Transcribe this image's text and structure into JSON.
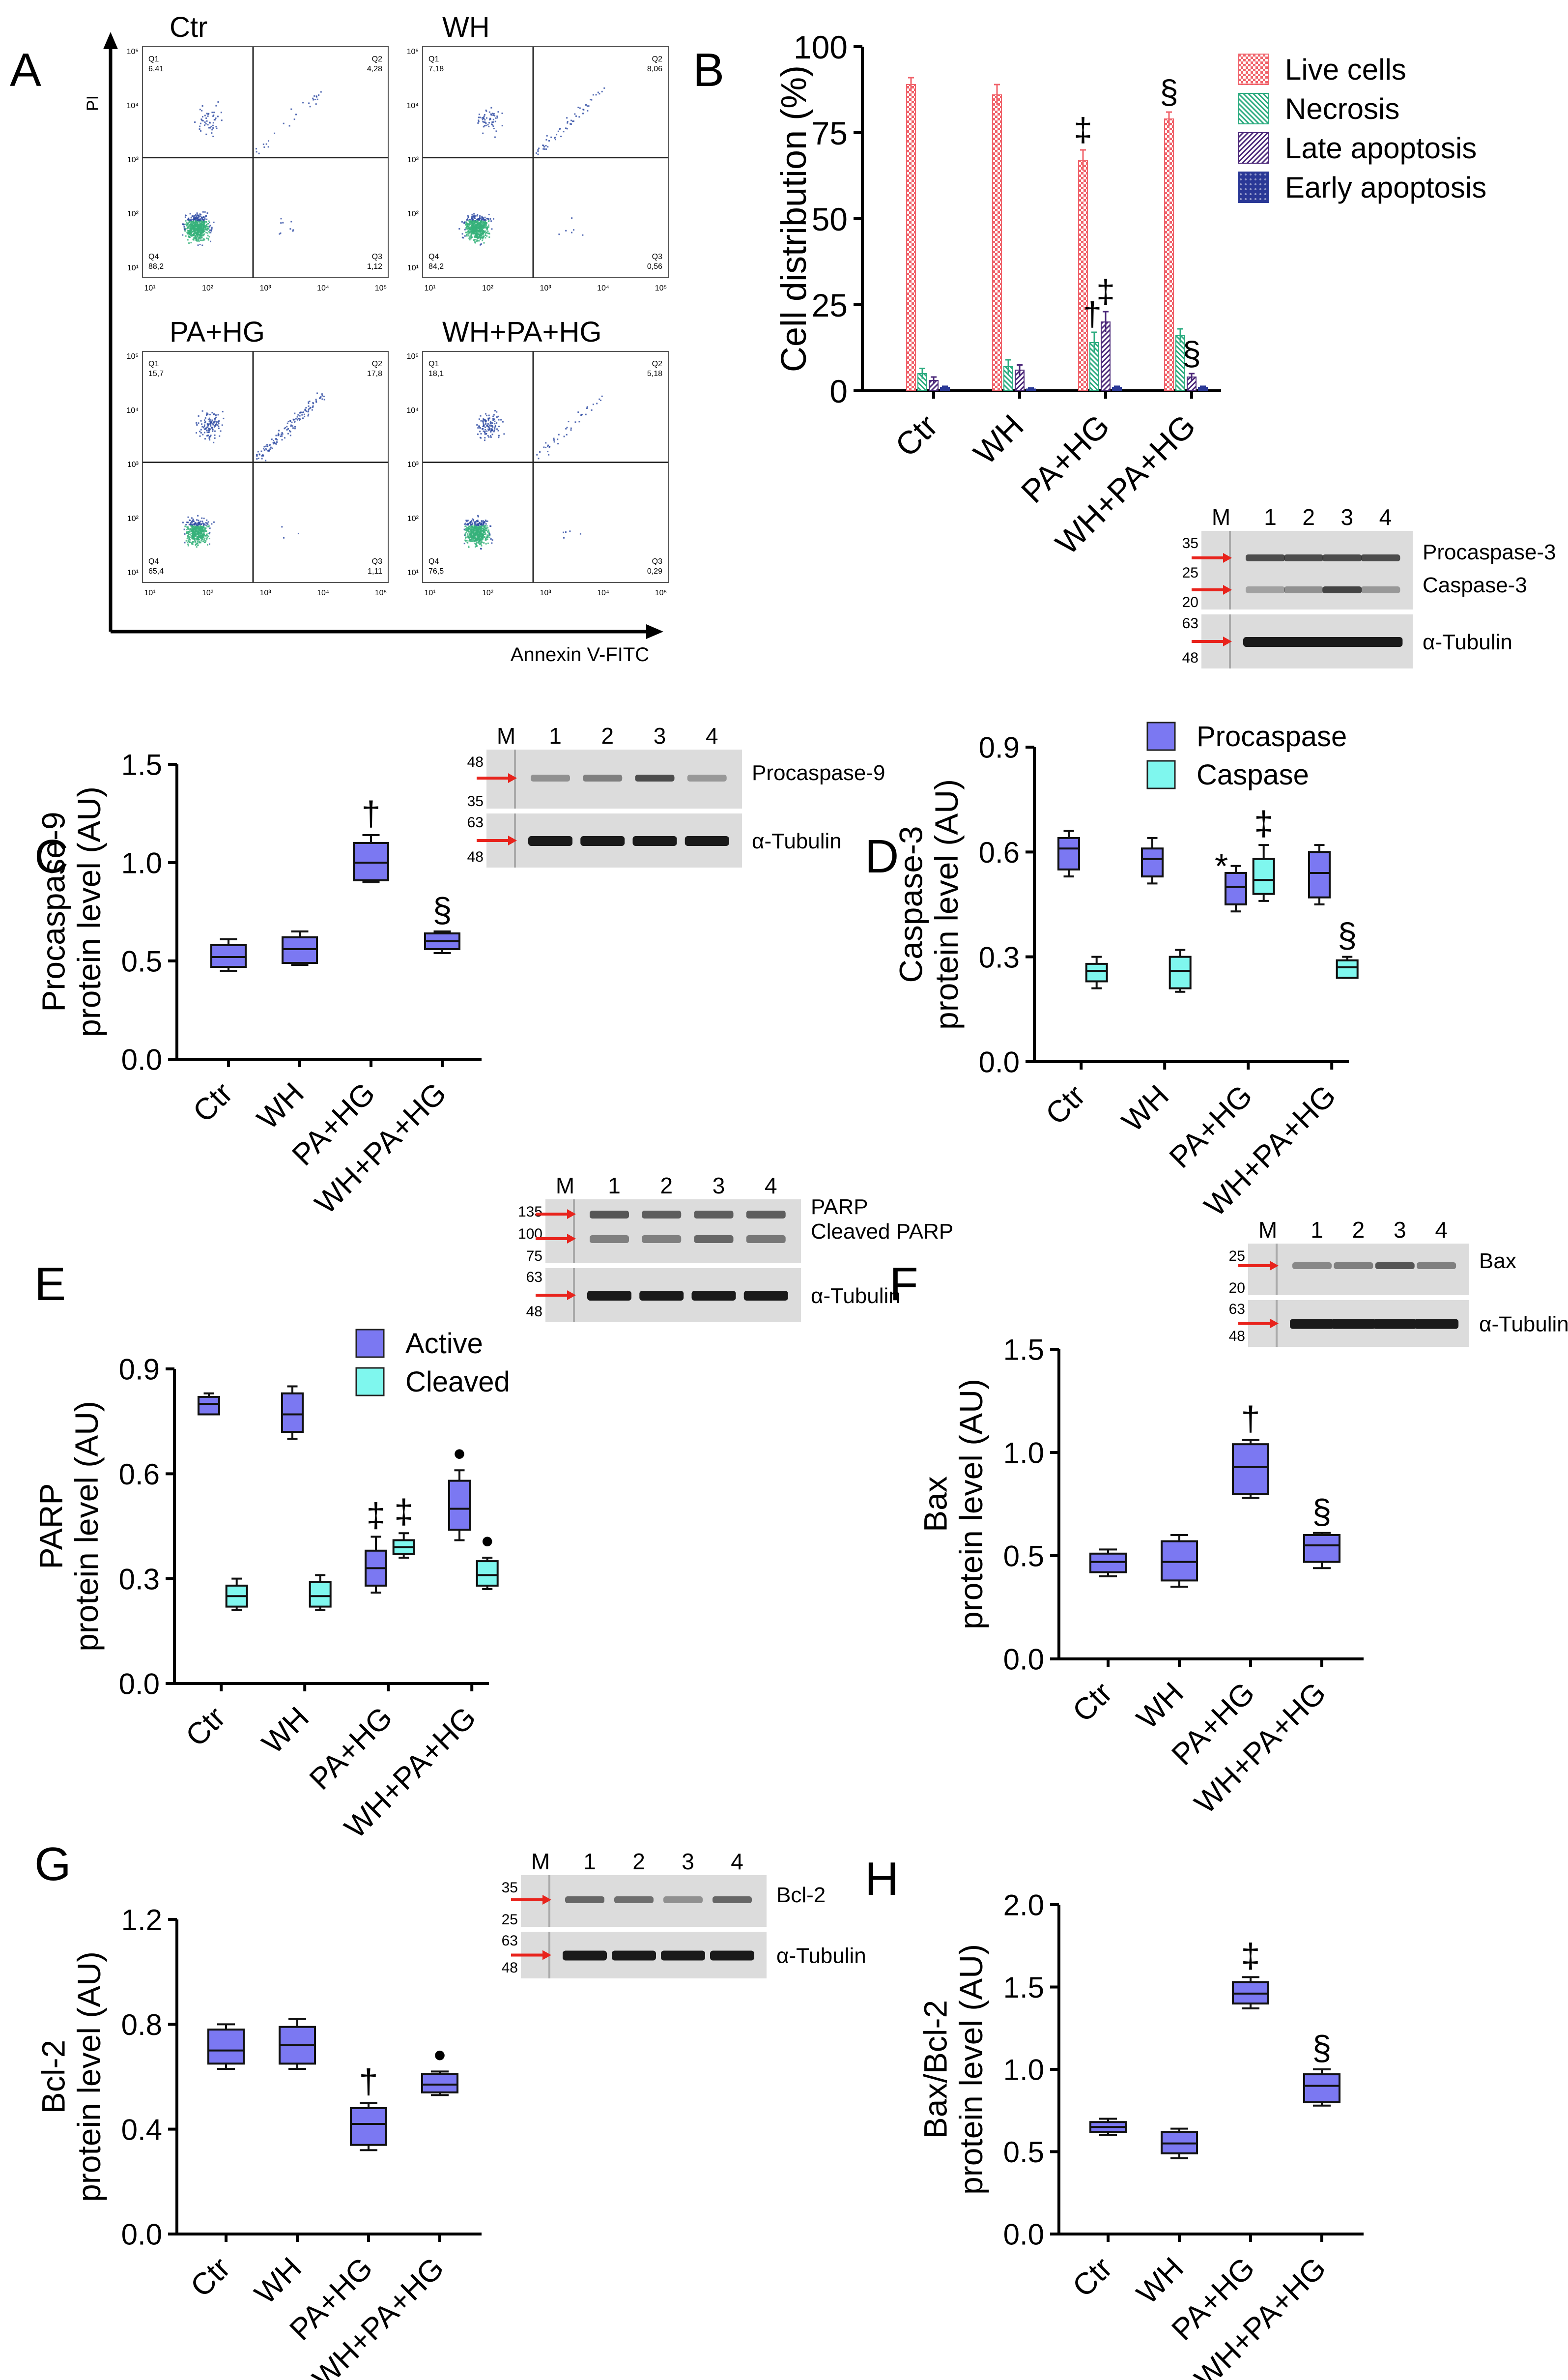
{
  "panel_labels": [
    "A",
    "B",
    "C",
    "D",
    "E",
    "F",
    "G",
    "H"
  ],
  "groups": [
    "Ctr",
    "WH",
    "PA+HG",
    "WH+PA+HG"
  ],
  "colors": {
    "live": "#f0636b",
    "necrosis": "#2bab7f",
    "late": "#4b2879",
    "early": "#2a3896",
    "box_primary": "#7b78f2",
    "box_secondary": "#7ff7ee",
    "arrow": "#e8231c",
    "scatter_main": "#2d4aa3",
    "scatter_dense": "#36b27a"
  },
  "flow": {
    "x_axis_label": "Annexin V-FITC",
    "y_axis_label": "PI",
    "x_ticks": [
      "10¹",
      "10²",
      "10³",
      "10⁴",
      "10⁵"
    ],
    "y_ticks": [
      "10¹",
      "10²",
      "10³",
      "10⁴",
      "10⁵"
    ],
    "plots": [
      {
        "title": "Ctr",
        "q1": "Q1",
        "q1v": "6,41",
        "q2": "Q2",
        "q2v": "4,28",
        "q3": "Q3",
        "q3v": "1,12",
        "q4": "Q4",
        "q4v": "88,2"
      },
      {
        "title": "WH",
        "q1": "Q1",
        "q1v": "7,18",
        "q2": "Q2",
        "q2v": "8,06",
        "q3": "Q3",
        "q3v": "0,56",
        "q4": "Q4",
        "q4v": "84,2"
      },
      {
        "title": "PA+HG",
        "q1": "Q1",
        "q1v": "15,7",
        "q2": "Q2",
        "q2v": "17,8",
        "q3": "Q3",
        "q3v": "1,11",
        "q4": "Q4",
        "q4v": "65,4"
      },
      {
        "title": "WH+PA+HG",
        "q1": "Q1",
        "q1v": "18,1",
        "q2": "Q2",
        "q2v": "5,18",
        "q3": "Q3",
        "q3v": "0,29",
        "q4": "Q4",
        "q4v": "76,5"
      }
    ]
  },
  "chart_data": [
    {
      "id": "B",
      "type": "bar",
      "title": "",
      "ylabel": "Cell distribution (%)",
      "xlabel": "",
      "ylim": [
        0,
        100
      ],
      "yticks": [
        "0",
        "25",
        "50",
        "75",
        "100"
      ],
      "categories": [
        "Ctr",
        "WH",
        "PA+HG",
        "WH+PA+HG"
      ],
      "series": [
        {
          "name": "Live cells",
          "values": [
            89,
            86,
            67,
            79
          ],
          "errors": [
            2,
            3,
            3,
            2
          ]
        },
        {
          "name": "Necrosis",
          "values": [
            5,
            7,
            14,
            16
          ],
          "errors": [
            1.5,
            2,
            3,
            2
          ]
        },
        {
          "name": "Late apoptosis",
          "values": [
            3,
            6,
            20,
            4
          ],
          "errors": [
            1,
            1.5,
            3,
            1
          ]
        },
        {
          "name": "Early apoptosis",
          "values": [
            1,
            0.5,
            1,
            1
          ],
          "errors": [
            0.3,
            0.3,
            0.3,
            0.3
          ]
        }
      ],
      "annotations": [
        {
          "text": "‡",
          "category": "PA+HG",
          "series": "Live cells"
        },
        {
          "text": "§",
          "category": "WH+PA+HG",
          "series": "Live cells"
        },
        {
          "text": "†",
          "category": "PA+HG",
          "series": "Necrosis"
        },
        {
          "text": "‡",
          "category": "PA+HG",
          "series": "Late apoptosis"
        },
        {
          "text": "§",
          "category": "WH+PA+HG",
          "series": "Late apoptosis"
        }
      ]
    },
    {
      "id": "C",
      "type": "box",
      "ylabel_line1": "Procaspase-9",
      "ylabel_line2": "protein level (AU)",
      "ylim": [
        0,
        1.5
      ],
      "yticks": [
        "0.0",
        "0.5",
        "1.0",
        "1.5"
      ],
      "categories": [
        "Ctr",
        "WH",
        "PA+HG",
        "WH+PA+HG"
      ],
      "series": [
        {
          "name": "Procaspase-9",
          "boxes": [
            {
              "min": 0.45,
              "q1": 0.47,
              "median": 0.52,
              "q3": 0.58,
              "max": 0.61
            },
            {
              "min": 0.48,
              "q1": 0.49,
              "median": 0.56,
              "q3": 0.62,
              "max": 0.65
            },
            {
              "min": 0.9,
              "q1": 0.91,
              "median": 1.0,
              "q3": 1.1,
              "max": 1.14
            },
            {
              "min": 0.54,
              "q1": 0.56,
              "median": 0.6,
              "q3": 0.64,
              "max": 0.65
            }
          ]
        }
      ],
      "annotations": [
        {
          "text": "†",
          "category": "PA+HG"
        },
        {
          "text": "§",
          "category": "WH+PA+HG"
        }
      ]
    },
    {
      "id": "D",
      "type": "box",
      "ylabel_line1": "Caspase-3",
      "ylabel_line2": "protein level (AU)",
      "ylim": [
        0,
        0.9
      ],
      "yticks": [
        "0.0",
        "0.3",
        "0.6",
        "0.9"
      ],
      "categories": [
        "Ctr",
        "WH",
        "PA+HG",
        "WH+PA+HG"
      ],
      "series": [
        {
          "name": "Procaspase",
          "boxes": [
            {
              "min": 0.53,
              "q1": 0.55,
              "median": 0.61,
              "q3": 0.64,
              "max": 0.66
            },
            {
              "min": 0.51,
              "q1": 0.53,
              "median": 0.58,
              "q3": 0.61,
              "max": 0.64
            },
            {
              "min": 0.43,
              "q1": 0.45,
              "median": 0.5,
              "q3": 0.54,
              "max": 0.56
            },
            {
              "min": 0.45,
              "q1": 0.47,
              "median": 0.54,
              "q3": 0.6,
              "max": 0.62
            }
          ]
        },
        {
          "name": "Caspase",
          "boxes": [
            {
              "min": 0.21,
              "q1": 0.23,
              "median": 0.26,
              "q3": 0.28,
              "max": 0.3
            },
            {
              "min": 0.2,
              "q1": 0.21,
              "median": 0.26,
              "q3": 0.3,
              "max": 0.32
            },
            {
              "min": 0.46,
              "q1": 0.48,
              "median": 0.52,
              "q3": 0.58,
              "max": 0.62
            },
            {
              "min": 0.24,
              "q1": 0.24,
              "median": 0.27,
              "q3": 0.29,
              "max": 0.3
            }
          ]
        }
      ],
      "legend": [
        "Procaspase",
        "Caspase"
      ],
      "annotations": [
        {
          "text": "*",
          "category": "PA+HG",
          "series": "Procaspase"
        },
        {
          "text": "‡",
          "category": "PA+HG",
          "series": "Caspase"
        },
        {
          "text": "§",
          "category": "WH+PA+HG",
          "series": "Caspase"
        }
      ]
    },
    {
      "id": "E",
      "type": "box",
      "ylabel_line1": "PARP",
      "ylabel_line2": "protein level (AU)",
      "ylim": [
        0,
        0.9
      ],
      "yticks": [
        "0.0",
        "0.3",
        "0.6",
        "0.9"
      ],
      "categories": [
        "Ctr",
        "WH",
        "PA+HG",
        "WH+PA+HG"
      ],
      "series": [
        {
          "name": "Active",
          "boxes": [
            {
              "min": 0.77,
              "q1": 0.77,
              "median": 0.8,
              "q3": 0.82,
              "max": 0.83
            },
            {
              "min": 0.7,
              "q1": 0.72,
              "median": 0.77,
              "q3": 0.83,
              "max": 0.85
            },
            {
              "min": 0.26,
              "q1": 0.28,
              "median": 0.33,
              "q3": 0.38,
              "max": 0.42
            },
            {
              "min": 0.41,
              "q1": 0.44,
              "median": 0.5,
              "q3": 0.58,
              "max": 0.61
            }
          ]
        },
        {
          "name": "Cleaved",
          "boxes": [
            {
              "min": 0.21,
              "q1": 0.22,
              "median": 0.25,
              "q3": 0.28,
              "max": 0.3
            },
            {
              "min": 0.21,
              "q1": 0.22,
              "median": 0.25,
              "q3": 0.29,
              "max": 0.31
            },
            {
              "min": 0.36,
              "q1": 0.37,
              "median": 0.39,
              "q3": 0.41,
              "max": 0.43
            },
            {
              "min": 0.27,
              "q1": 0.28,
              "median": 0.31,
              "q3": 0.35,
              "max": 0.36
            }
          ]
        }
      ],
      "legend": [
        "Active",
        "Cleaved"
      ],
      "annotations": [
        {
          "text": "‡",
          "category": "PA+HG",
          "series": "Active"
        },
        {
          "text": "‡",
          "category": "PA+HG",
          "series": "Cleaved"
        },
        {
          "text": "●",
          "category": "WH+PA+HG",
          "series": "Active"
        },
        {
          "text": "●",
          "category": "WH+PA+HG",
          "series": "Cleaved"
        }
      ]
    },
    {
      "id": "F",
      "type": "box",
      "ylabel_line1": "Bax",
      "ylabel_line2": "protein level (AU)",
      "ylim": [
        0,
        1.5
      ],
      "yticks": [
        "0.0",
        "0.5",
        "1.0",
        "1.5"
      ],
      "categories": [
        "Ctr",
        "WH",
        "PA+HG",
        "WH+PA+HG"
      ],
      "series": [
        {
          "name": "Bax",
          "boxes": [
            {
              "min": 0.4,
              "q1": 0.42,
              "median": 0.47,
              "q3": 0.51,
              "max": 0.53
            },
            {
              "min": 0.35,
              "q1": 0.38,
              "median": 0.47,
              "q3": 0.57,
              "max": 0.6
            },
            {
              "min": 0.78,
              "q1": 0.8,
              "median": 0.93,
              "q3": 1.04,
              "max": 1.06
            },
            {
              "min": 0.44,
              "q1": 0.47,
              "median": 0.55,
              "q3": 0.6,
              "max": 0.61
            }
          ]
        }
      ],
      "annotations": [
        {
          "text": "†",
          "category": "PA+HG"
        },
        {
          "text": "§",
          "category": "WH+PA+HG"
        }
      ]
    },
    {
      "id": "G",
      "type": "box",
      "ylabel_line1": "Bcl-2",
      "ylabel_line2": "protein level (AU)",
      "ylim": [
        0,
        1.2
      ],
      "yticks": [
        "0.0",
        "0.4",
        "0.8",
        "1.2"
      ],
      "categories": [
        "Ctr",
        "WH",
        "PA+HG",
        "WH+PA+HG"
      ],
      "series": [
        {
          "name": "Bcl-2",
          "boxes": [
            {
              "min": 0.63,
              "q1": 0.65,
              "median": 0.7,
              "q3": 0.78,
              "max": 0.8
            },
            {
              "min": 0.63,
              "q1": 0.65,
              "median": 0.72,
              "q3": 0.79,
              "max": 0.82
            },
            {
              "min": 0.32,
              "q1": 0.34,
              "median": 0.42,
              "q3": 0.48,
              "max": 0.5
            },
            {
              "min": 0.53,
              "q1": 0.54,
              "median": 0.57,
              "q3": 0.61,
              "max": 0.62
            }
          ]
        }
      ],
      "annotations": [
        {
          "text": "†",
          "category": "PA+HG"
        },
        {
          "text": "●",
          "category": "WH+PA+HG"
        }
      ]
    },
    {
      "id": "H",
      "type": "box",
      "ylabel_line1": "Bax/Bcl-2",
      "ylabel_line2": "protein level (AU)",
      "ylim": [
        0,
        2.0
      ],
      "yticks": [
        "0.0",
        "0.5",
        "1.0",
        "1.5",
        "2.0"
      ],
      "categories": [
        "Ctr",
        "WH",
        "PA+HG",
        "WH+PA+HG"
      ],
      "series": [
        {
          "name": "Bax/Bcl-2",
          "boxes": [
            {
              "min": 0.6,
              "q1": 0.62,
              "median": 0.65,
              "q3": 0.68,
              "max": 0.7
            },
            {
              "min": 0.46,
              "q1": 0.49,
              "median": 0.55,
              "q3": 0.62,
              "max": 0.64
            },
            {
              "min": 1.37,
              "q1": 1.4,
              "median": 1.46,
              "q3": 1.53,
              "max": 1.56
            },
            {
              "min": 0.78,
              "q1": 0.8,
              "median": 0.9,
              "q3": 0.97,
              "max": 1.0
            }
          ]
        }
      ],
      "annotations": [
        {
          "text": "‡",
          "category": "PA+HG"
        },
        {
          "text": "§",
          "category": "WH+PA+HG"
        }
      ]
    }
  ],
  "blots": {
    "lane_labels": [
      "M",
      "1",
      "2",
      "3",
      "4"
    ],
    "b": {
      "markers_top": [
        "35",
        "25",
        "20"
      ],
      "markers_bottom": [
        "63",
        "48"
      ],
      "bands_top": [
        "Procaspase-3",
        "Caspase-3"
      ],
      "band_bottom": "α-Tubulin"
    },
    "c": {
      "markers_top": [
        "48",
        "35"
      ],
      "markers_bottom": [
        "63",
        "48"
      ],
      "bands_top": [
        "Procaspase-9"
      ],
      "band_bottom": "α-Tubulin"
    },
    "e": {
      "markers_top": [
        "135",
        "100",
        "75"
      ],
      "markers_bottom": [
        "63",
        "48"
      ],
      "bands_top": [
        "PARP",
        "Cleaved PARP"
      ],
      "band_bottom": "α-Tubulin"
    },
    "f": {
      "markers_top": [
        "25",
        "20"
      ],
      "markers_bottom": [
        "63",
        "48"
      ],
      "bands_top": [
        "Bax"
      ],
      "band_bottom": "α-Tubulin"
    },
    "g": {
      "markers_top": [
        "35",
        "25"
      ],
      "markers_bottom": [
        "63",
        "48"
      ],
      "bands_top": [
        "Bcl-2"
      ],
      "band_bottom": "α-Tubulin"
    }
  }
}
